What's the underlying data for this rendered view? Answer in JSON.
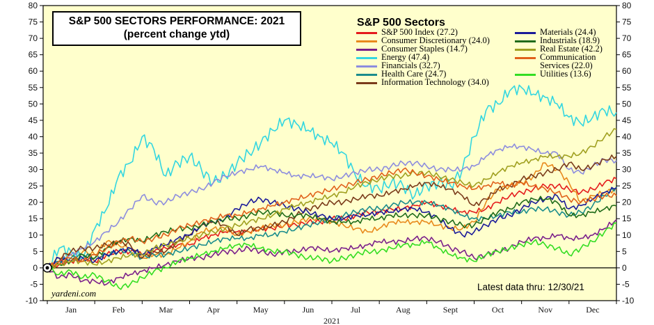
{
  "chart_data": {
    "type": "line",
    "title": "S&P 500 SECTORS PERFORMANCE: 2021",
    "subtitle": "(percent change ytd)",
    "xlabel": "2021",
    "ylabel": "",
    "ylim": [
      -10,
      80
    ],
    "yticks": [
      -10,
      -5,
      0,
      5,
      10,
      15,
      20,
      25,
      30,
      35,
      40,
      45,
      50,
      55,
      60,
      65,
      70,
      75,
      80
    ],
    "ytick_labels": [
      "-10",
      "-5",
      "0",
      "5",
      "10",
      "15",
      "20",
      "25",
      "30",
      "35",
      "40",
      "45",
      "50",
      "55",
      "60",
      "65",
      "70",
      "75",
      "80"
    ],
    "months": [
      "Jan",
      "Feb",
      "Mar",
      "Apr",
      "May",
      "Jun",
      "Jul",
      "Aug",
      "Sept",
      "Oct",
      "Nov",
      "Dec"
    ],
    "legend_title": "S&P 500 Sectors",
    "legend_position": "top-right",
    "background": "#ffffcc",
    "grid": false,
    "x_unit": "month of 2021",
    "x": [
      0,
      0.25,
      0.5,
      0.75,
      1,
      1.25,
      1.5,
      1.75,
      2,
      2.25,
      2.5,
      2.75,
      3,
      3.25,
      3.5,
      3.75,
      4,
      4.25,
      4.5,
      4.75,
      5,
      5.25,
      5.5,
      5.75,
      6,
      6.25,
      6.5,
      6.75,
      7,
      7.25,
      7.5,
      7.75,
      8,
      8.25,
      8.5,
      8.75,
      9,
      9.25,
      9.5,
      9.75,
      10,
      10.25,
      10.5,
      10.75,
      11,
      11.25,
      11.5,
      11.75,
      12
    ],
    "series": [
      {
        "name": "S&P 500 Index (27.2)",
        "color": "#e41a1c",
        "values": [
          0,
          1,
          2,
          3,
          2,
          4,
          5,
          5,
          4,
          5,
          6,
          7,
          7,
          9,
          10,
          11,
          11,
          11,
          12,
          12,
          13,
          13,
          14,
          14,
          15,
          15,
          16,
          17,
          17,
          18,
          18,
          19,
          20,
          19,
          18,
          17,
          17,
          18,
          20,
          22,
          23,
          24,
          25,
          25,
          24,
          23,
          24,
          26,
          27.2
        ]
      },
      {
        "name": "Consumer Discretionary (24.0)",
        "color": "#e8891c",
        "values": [
          0,
          2,
          4,
          5,
          4,
          8,
          7,
          6,
          3,
          4,
          4,
          6,
          8,
          11,
          12,
          12,
          10,
          11,
          12,
          13,
          13,
          14,
          15,
          15,
          14,
          13,
          12,
          11,
          12,
          14,
          14,
          14,
          14,
          13,
          12,
          12,
          14,
          20,
          24,
          25,
          26,
          28,
          32,
          30,
          26,
          20,
          22,
          23,
          24.0
        ]
      },
      {
        "name": "Consumer Staples (14.7)",
        "color": "#7a1f8a",
        "values": [
          0,
          -3,
          -2,
          -4,
          -4,
          -5,
          -3,
          -2,
          -1,
          0,
          1,
          2,
          3,
          3,
          4,
          5,
          5,
          6,
          5,
          4,
          5,
          5,
          6,
          6,
          5,
          6,
          6,
          7,
          8,
          8,
          8,
          9,
          9,
          8,
          6,
          5,
          3,
          4,
          5,
          6,
          8,
          9,
          9,
          10,
          9,
          9,
          10,
          12,
          14.7
        ]
      },
      {
        "name": "Energy (47.4)",
        "color": "#33d6e0",
        "values": [
          0,
          6,
          5,
          3,
          12,
          18,
          28,
          32,
          40,
          36,
          28,
          32,
          34,
          30,
          26,
          28,
          32,
          35,
          38,
          42,
          45,
          44,
          42,
          40,
          38,
          35,
          28,
          25,
          24,
          26,
          25,
          22,
          25,
          26,
          25,
          30,
          40,
          48,
          50,
          54,
          55,
          53,
          52,
          50,
          46,
          44,
          46,
          48,
          47.4
        ]
      },
      {
        "name": "Financials (32.7)",
        "color": "#8c8cde",
        "values": [
          0,
          2,
          4,
          6,
          8,
          11,
          14,
          18,
          22,
          20,
          20,
          22,
          23,
          24,
          26,
          28,
          29,
          30,
          31,
          30,
          29,
          28,
          28,
          28,
          27,
          28,
          29,
          30,
          30,
          31,
          32,
          32,
          31,
          30,
          30,
          30,
          31,
          34,
          36,
          37,
          37,
          36,
          35,
          35,
          30,
          29,
          31,
          33,
          32.7
        ]
      },
      {
        "name": "Health Care (24.7)",
        "color": "#1a8c8c",
        "values": [
          0,
          2,
          3,
          4,
          3,
          4,
          5,
          5,
          3,
          4,
          4,
          5,
          6,
          7,
          8,
          9,
          9,
          9,
          10,
          10,
          11,
          12,
          13,
          14,
          15,
          16,
          17,
          18,
          18,
          19,
          20,
          20,
          20,
          19,
          18,
          16,
          15,
          15,
          16,
          17,
          17,
          18,
          18,
          17,
          16,
          17,
          19,
          22,
          24.7
        ]
      },
      {
        "name": "Information Technology (34.0)",
        "color": "#7a3b1a",
        "values": [
          0,
          3,
          5,
          6,
          6,
          7,
          8,
          7,
          3,
          5,
          5,
          8,
          10,
          13,
          14,
          13,
          10,
          12,
          12,
          13,
          14,
          16,
          18,
          19,
          20,
          20,
          21,
          22,
          22,
          23,
          24,
          25,
          26,
          25,
          24,
          22,
          19,
          21,
          24,
          25,
          27,
          28,
          29,
          30,
          32,
          30,
          31,
          33,
          34.0
        ]
      },
      {
        "name": "Materials (24.4)",
        "color": "#1a1a99",
        "values": [
          0,
          3,
          2,
          3,
          2,
          4,
          5,
          6,
          4,
          6,
          7,
          9,
          10,
          13,
          14,
          15,
          18,
          20,
          21,
          20,
          19,
          18,
          17,
          16,
          15,
          15,
          16,
          16,
          17,
          17,
          18,
          18,
          17,
          15,
          12,
          10,
          11,
          13,
          15,
          16,
          18,
          20,
          21,
          22,
          18,
          19,
          21,
          23,
          24.4
        ]
      },
      {
        "name": "Industrials (18.9)",
        "color": "#1f6b1a",
        "values": [
          0,
          1,
          2,
          4,
          3,
          6,
          8,
          9,
          8,
          10,
          11,
          12,
          12,
          13,
          14,
          15,
          15,
          16,
          17,
          17,
          16,
          16,
          16,
          15,
          14,
          14,
          14,
          15,
          15,
          16,
          16,
          16,
          16,
          15,
          14,
          13,
          13,
          15,
          17,
          18,
          20,
          21,
          21,
          20,
          16,
          16,
          17,
          18,
          18.9
        ]
      },
      {
        "name": "Real Estate (42.2)",
        "color": "#a0a020",
        "values": [
          0,
          1,
          2,
          2,
          1,
          2,
          3,
          4,
          4,
          6,
          7,
          8,
          9,
          10,
          11,
          12,
          13,
          14,
          15,
          16,
          18,
          19,
          20,
          21,
          22,
          23,
          25,
          26,
          27,
          28,
          28,
          29,
          29,
          28,
          27,
          26,
          25,
          27,
          29,
          31,
          32,
          33,
          34,
          34,
          34,
          35,
          37,
          40,
          42.2
        ]
      },
      {
        "name": "Communication\nServices (22.0)",
        "color": "#e0601a",
        "values": [
          0,
          2,
          3,
          2,
          4,
          6,
          8,
          9,
          8,
          9,
          10,
          12,
          13,
          14,
          15,
          16,
          16,
          17,
          18,
          19,
          20,
          21,
          22,
          23,
          24,
          25,
          26,
          27,
          28,
          29,
          30,
          29,
          28,
          27,
          26,
          25,
          24,
          25,
          26,
          25,
          26,
          25,
          24,
          23,
          21,
          20,
          21,
          22,
          22.0
        ]
      },
      {
        "name": "Utilities (13.6)",
        "color": "#33dd22",
        "values": [
          0,
          -2,
          -1,
          -3,
          -2,
          -4,
          -6,
          -5,
          -3,
          -1,
          0,
          2,
          3,
          4,
          5,
          6,
          7,
          7,
          6,
          5,
          5,
          4,
          3,
          3,
          2,
          3,
          4,
          5,
          5,
          6,
          7,
          7,
          8,
          6,
          4,
          3,
          2,
          4,
          5,
          6,
          7,
          8,
          7,
          6,
          4,
          6,
          8,
          11,
          13.6
        ]
      }
    ]
  },
  "watermark": "yardeni.com",
  "note": "Latest data thru: 12/30/21"
}
